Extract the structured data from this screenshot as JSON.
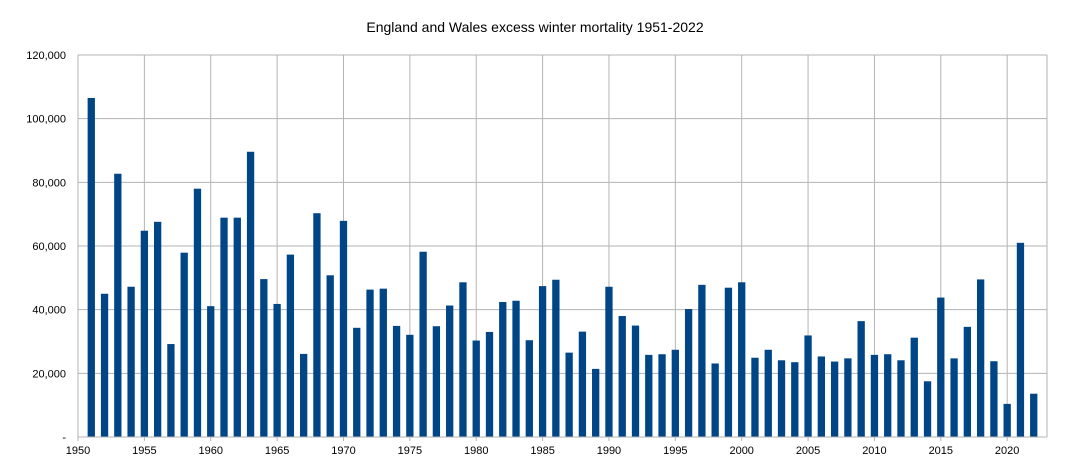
{
  "chart_data": {
    "type": "bar",
    "title": "England and Wales excess winter mortality 1951-2022",
    "xlabel": "",
    "ylabel": "",
    "x_ticks": [
      1950,
      1955,
      1960,
      1965,
      1970,
      1975,
      1980,
      1985,
      1990,
      1995,
      2000,
      2005,
      2010,
      2015,
      2020
    ],
    "y_ticks": [
      0,
      20000,
      40000,
      60000,
      80000,
      100000,
      120000
    ],
    "y_tick_labels": [
      "-",
      "20,000",
      "40,000",
      "60,000",
      "80,000",
      "100,000",
      "120,000"
    ],
    "ylim": [
      0,
      120000
    ],
    "xlim": [
      1950,
      2023
    ],
    "grid": true,
    "bar_color": "#004586",
    "grid_color": "#b3b3b3",
    "categories": [
      1951,
      1952,
      1953,
      1954,
      1955,
      1956,
      1957,
      1958,
      1959,
      1960,
      1961,
      1962,
      1963,
      1964,
      1965,
      1966,
      1967,
      1968,
      1969,
      1970,
      1971,
      1972,
      1973,
      1974,
      1975,
      1976,
      1977,
      1978,
      1979,
      1980,
      1981,
      1982,
      1983,
      1984,
      1985,
      1986,
      1987,
      1988,
      1989,
      1990,
      1991,
      1992,
      1993,
      1994,
      1995,
      1996,
      1997,
      1998,
      1999,
      2000,
      2001,
      2002,
      2003,
      2004,
      2005,
      2006,
      2007,
      2008,
      2009,
      2010,
      2011,
      2012,
      2013,
      2014,
      2015,
      2016,
      2017,
      2018,
      2019,
      2020,
      2021,
      2022
    ],
    "values": [
      106500,
      45000,
      82700,
      47200,
      64800,
      67600,
      29200,
      57900,
      78000,
      41100,
      68900,
      68900,
      89600,
      49600,
      41800,
      57300,
      26100,
      70300,
      50800,
      67900,
      34300,
      46300,
      46600,
      34900,
      32100,
      58200,
      34800,
      41300,
      48600,
      30300,
      33000,
      42400,
      42800,
      30400,
      47400,
      49400,
      26500,
      33100,
      21400,
      47200,
      38000,
      35000,
      25800,
      26000,
      27400,
      40200,
      47800,
      23100,
      46900,
      48600,
      24900,
      27400,
      24100,
      23500,
      31900,
      25300,
      23700,
      24700,
      36400,
      25800,
      26000,
      24100,
      31200,
      17500,
      43800,
      24700,
      34600,
      49500,
      23800,
      10400,
      61000,
      13600
    ]
  }
}
